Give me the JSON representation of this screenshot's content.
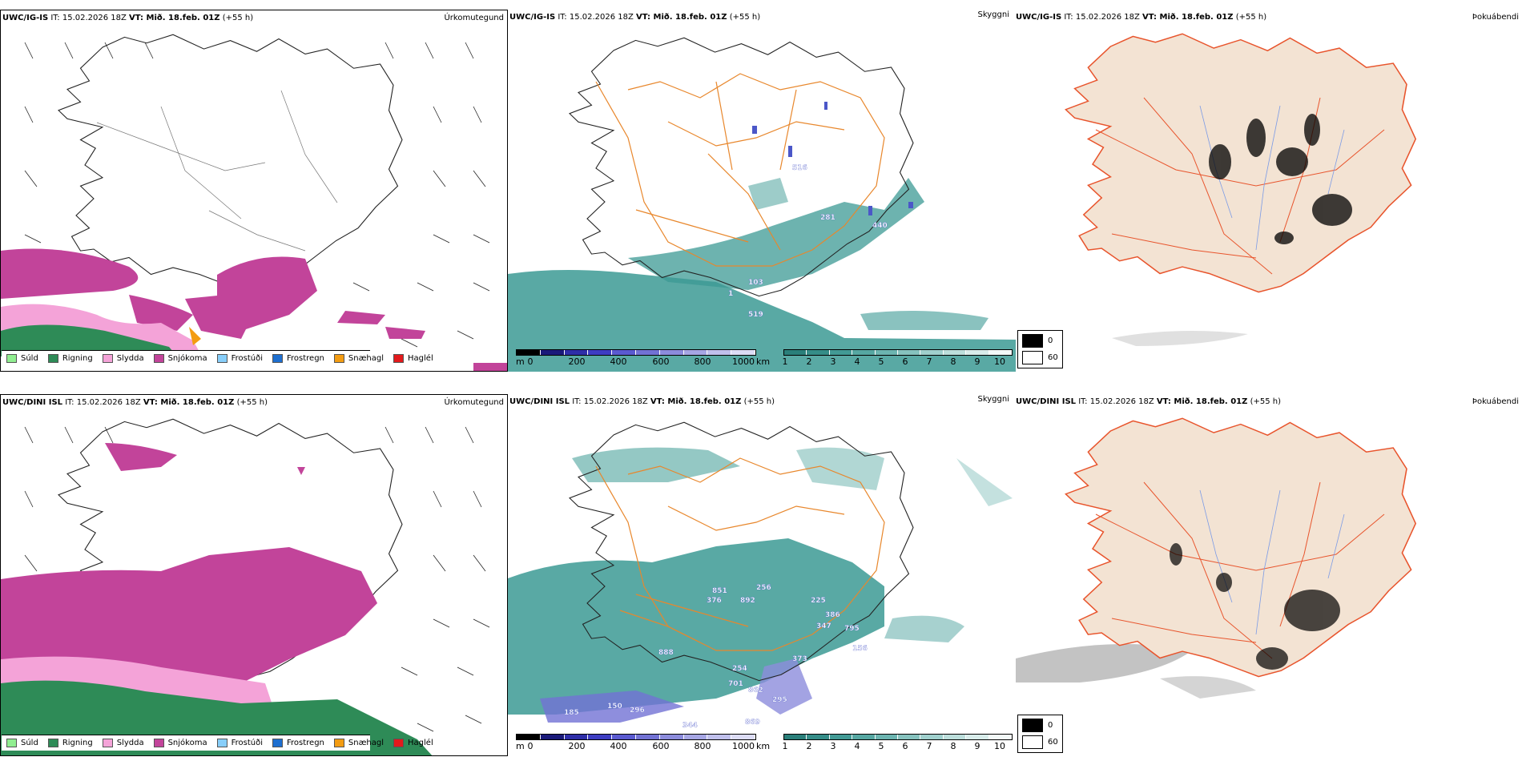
{
  "rows": [
    {
      "precip": {
        "model": "UWC/IG-IS",
        "rest": " IT: 15.02.2026 18Z ",
        "vt": "VT: Mið. 18.feb. 01Z",
        "lead": " (+55 h)",
        "title": "Úrkomutegund"
      },
      "vis": {
        "model": "UWC/IG-IS",
        "rest": " IT: 15.02.2026 18Z ",
        "vt": "VT: Mið. 18.feb. 01Z",
        "lead": " (+55 h)",
        "title": "Skyggni"
      },
      "fog": {
        "model": "UWC/IG-IS",
        "rest": " IT: 15.02.2026 18Z ",
        "vt": "VT: Mið. 18.feb. 01Z",
        "lead": " (+55 h)",
        "title": "Þokuábendi"
      },
      "labels": [
        "103",
        "281",
        "516",
        "440",
        "519",
        "1"
      ]
    },
    {
      "precip": {
        "model": "UWC/DINI ISL",
        "rest": " IT: 15.02.2026 18Z ",
        "vt": "VT: Mið. 18.feb. 01Z",
        "lead": " (+55 h)",
        "title": "Úrkomutegund"
      },
      "vis": {
        "model": "UWC/DINI ISL",
        "rest": " IT: 15.02.2026 18Z ",
        "vt": "VT: Mið. 18.feb. 01Z",
        "lead": " (+55 h)",
        "title": "Skyggni"
      },
      "fog": {
        "model": "UWC/DINI ISL",
        "rest": " IT: 15.02.2026 18Z ",
        "vt": "VT: Mið. 18.feb. 01Z",
        "lead": " (+55 h)",
        "title": "Þokuábendi"
      },
      "labels": [
        "851",
        "376",
        "892",
        "256",
        "225",
        "386",
        "347",
        "795",
        "156",
        "888",
        "373",
        "254",
        "701",
        "862",
        "295",
        "185",
        "150",
        "296",
        "344",
        "869"
      ]
    }
  ],
  "precip_legend": [
    {
      "label": "Súld",
      "color": "#90ee90"
    },
    {
      "label": "Rigning",
      "color": "#2e8b57"
    },
    {
      "label": "Slydda",
      "color": "#f4a3d8"
    },
    {
      "label": "Snjókoma",
      "color": "#c2449a"
    },
    {
      "label": "Frostúði",
      "color": "#87cefa"
    },
    {
      "label": "Frostregn",
      "color": "#1e6fd0"
    },
    {
      "label": "Snæhagl",
      "color": "#f39c12"
    },
    {
      "label": "Haglél",
      "color": "#e31a1c"
    }
  ],
  "ceiling_scale": {
    "unit": "m",
    "ticks": [
      "0",
      "200",
      "400",
      "600",
      "800",
      "1000"
    ]
  },
  "vis_scale": {
    "unit": "km",
    "ticks": [
      "1",
      "2",
      "3",
      "4",
      "5",
      "6",
      "7",
      "8",
      "9",
      "10"
    ]
  },
  "fog_legend": [
    {
      "label": "0",
      "color": "#000000"
    },
    {
      "label": "60",
      "color": "#ffffff"
    }
  ],
  "colors": {
    "snow": "#c2449a",
    "rain": "#2e8b57",
    "sleet": "#f4a3d8",
    "teal": "#3c9a94",
    "roads": "#e8872c",
    "land": "#f3e3d3",
    "roads_red": "#e8542c",
    "rivers": "#7b9be6"
  }
}
